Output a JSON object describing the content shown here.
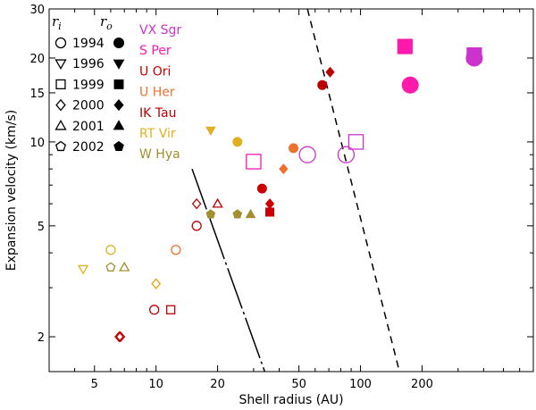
{
  "chart_data": {
    "type": "scatter",
    "xscale": "log",
    "yscale": "log",
    "xlabel": "Shell radius (AU)",
    "ylabel": "Expansion velocity (km/s)",
    "xlim": [
      3,
      700
    ],
    "ylim": [
      1.5,
      30
    ],
    "xticks": [
      5,
      10,
      20,
      50,
      100,
      200
    ],
    "yticks": [
      2,
      5,
      10,
      15,
      20,
      30
    ],
    "legend": {
      "header_inner": "r_i",
      "header_outer": "r_o",
      "years": [
        "1994",
        "1996",
        "1999",
        "2000",
        "2001",
        "2002"
      ]
    },
    "stars": [
      {
        "name": "VX Sgr",
        "color": "#cc33cc"
      },
      {
        "name": "S Per",
        "color": "#ff1aab"
      },
      {
        "name": "U Ori",
        "color": "#cc0000"
      },
      {
        "name": "U Her",
        "color": "#f07030"
      },
      {
        "name": "IK Tau",
        "color": "#bb0000"
      },
      {
        "name": "RT Vir",
        "color": "#e0b020"
      },
      {
        "name": "W Hya",
        "color": "#a09030"
      }
    ],
    "series": [
      {
        "name": "VX Sgr r_i",
        "star": "VX Sgr",
        "filled": false,
        "points": [
          {
            "x": 55,
            "y": 9.0,
            "marker": "circle",
            "size": "large"
          },
          {
            "x": 85,
            "y": 9.0,
            "marker": "circle",
            "size": "large"
          },
          {
            "x": 95,
            "y": 10,
            "marker": "square",
            "size": "large"
          }
        ]
      },
      {
        "name": "VX Sgr r_o",
        "star": "VX Sgr",
        "filled": true,
        "points": [
          {
            "x": 360,
            "y": 20,
            "marker": "circle",
            "size": "large"
          },
          {
            "x": 360,
            "y": 20.5,
            "marker": "square",
            "size": "large"
          }
        ]
      },
      {
        "name": "S Per r_i",
        "star": "S Per",
        "filled": false,
        "points": [
          {
            "x": 30,
            "y": 8.5,
            "marker": "square",
            "size": "large"
          }
        ]
      },
      {
        "name": "S Per r_o",
        "star": "S Per",
        "filled": true,
        "points": [
          {
            "x": 175,
            "y": 16,
            "marker": "circle",
            "size": "large"
          },
          {
            "x": 165,
            "y": 22,
            "marker": "square",
            "size": "large"
          }
        ]
      },
      {
        "name": "U Ori r_i",
        "star": "U Ori",
        "filled": false,
        "points": [
          {
            "x": 6.6,
            "y": 2.0,
            "marker": "diamond",
            "size": "normal"
          }
        ]
      },
      {
        "name": "U Ori r_o",
        "star": "U Ori",
        "filled": true,
        "points": [
          {
            "x": 33,
            "y": 6.8,
            "marker": "circle",
            "size": "normal"
          },
          {
            "x": 36,
            "y": 6.0,
            "marker": "diamond",
            "size": "normal"
          },
          {
            "x": 36,
            "y": 5.6,
            "marker": "square",
            "size": "normal"
          }
        ]
      },
      {
        "name": "U Her r_i",
        "star": "U Her",
        "filled": false,
        "points": [
          {
            "x": 12.5,
            "y": 4.1,
            "marker": "circle",
            "size": "normal"
          },
          {
            "x": 10,
            "y": 3.1,
            "marker": "diamond",
            "size": "normal"
          }
        ]
      },
      {
        "name": "U Her r_o",
        "star": "U Her",
        "filled": true,
        "points": [
          {
            "x": 47,
            "y": 9.5,
            "marker": "circle",
            "size": "normal"
          },
          {
            "x": 42,
            "y": 8.0,
            "marker": "diamond",
            "size": "normal"
          }
        ]
      },
      {
        "name": "IK Tau r_i",
        "star": "IK Tau",
        "filled": false,
        "points": [
          {
            "x": 9.8,
            "y": 2.5,
            "marker": "circle",
            "size": "normal"
          },
          {
            "x": 11.8,
            "y": 2.5,
            "marker": "square",
            "size": "normal"
          },
          {
            "x": 6.7,
            "y": 2.0,
            "marker": "diamond",
            "size": "normal"
          },
          {
            "x": 15.8,
            "y": 5.0,
            "marker": "circle",
            "size": "normal"
          },
          {
            "x": 15.8,
            "y": 6.0,
            "marker": "diamond",
            "size": "normal"
          },
          {
            "x": 20,
            "y": 6.0,
            "marker": "triangle",
            "size": "normal"
          }
        ]
      },
      {
        "name": "IK Tau r_o",
        "star": "IK Tau",
        "filled": true,
        "points": [
          {
            "x": 65,
            "y": 16,
            "marker": "circle",
            "size": "normal"
          },
          {
            "x": 71,
            "y": 17.8,
            "marker": "diamond",
            "size": "normal"
          }
        ]
      },
      {
        "name": "RT Vir r_i",
        "star": "RT Vir",
        "filled": false,
        "points": [
          {
            "x": 6.0,
            "y": 4.1,
            "marker": "circle",
            "size": "normal"
          },
          {
            "x": 4.4,
            "y": 3.5,
            "marker": "triangle_down",
            "size": "normal"
          },
          {
            "x": 10,
            "y": 3.1,
            "marker": "diamond",
            "size": "normal"
          }
        ]
      },
      {
        "name": "RT Vir r_o",
        "star": "RT Vir",
        "filled": true,
        "points": [
          {
            "x": 18.5,
            "y": 11,
            "marker": "triangle_down",
            "size": "normal"
          },
          {
            "x": 25,
            "y": 10,
            "marker": "circle",
            "size": "normal"
          }
        ]
      },
      {
        "name": "W Hya r_i",
        "star": "W Hya",
        "filled": false,
        "points": [
          {
            "x": 6.0,
            "y": 3.55,
            "marker": "pentagon",
            "size": "normal"
          },
          {
            "x": 7.0,
            "y": 3.55,
            "marker": "triangle",
            "size": "normal"
          }
        ]
      },
      {
        "name": "W Hya r_o",
        "star": "W Hya",
        "filled": true,
        "points": [
          {
            "x": 18.5,
            "y": 5.5,
            "marker": "pentagon",
            "size": "normal"
          },
          {
            "x": 25,
            "y": 5.5,
            "marker": "pentagon",
            "size": "normal"
          },
          {
            "x": 29,
            "y": 5.5,
            "marker": "triangle",
            "size": "normal"
          }
        ]
      }
    ],
    "lines": [
      {
        "name": "long-dash line",
        "style": "long-dash",
        "color": "#000000",
        "x": [
          15,
          34
        ],
        "y": [
          8,
          1.5
        ]
      },
      {
        "name": "dashed line",
        "style": "dashed",
        "color": "#000000",
        "x": [
          55,
          155
        ],
        "y": [
          30,
          1.5
        ]
      }
    ]
  }
}
